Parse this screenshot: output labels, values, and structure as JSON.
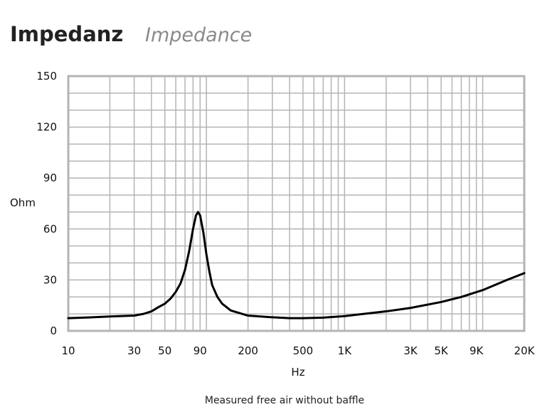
{
  "chart_data": {
    "type": "line",
    "title": "Impedanz",
    "subtitle": "Impedance",
    "xlabel": "Hz",
    "ylabel": "Ohm",
    "caption": "Measured free air without baffle",
    "x_scale": "log",
    "xlim": [
      10,
      20000
    ],
    "ylim": [
      0,
      150
    ],
    "grid": true,
    "x_ticks": [
      {
        "value": 10,
        "label": "10"
      },
      {
        "value": 30,
        "label": "30"
      },
      {
        "value": 50,
        "label": "50"
      },
      {
        "value": 90,
        "label": "90"
      },
      {
        "value": 200,
        "label": "200"
      },
      {
        "value": 500,
        "label": "500"
      },
      {
        "value": 1000,
        "label": "1K"
      },
      {
        "value": 3000,
        "label": "3K"
      },
      {
        "value": 5000,
        "label": "5K"
      },
      {
        "value": 9000,
        "label": "9K"
      },
      {
        "value": 20000,
        "label": "20K"
      }
    ],
    "y_ticks": [
      0,
      30,
      60,
      90,
      120,
      150
    ],
    "x_gridlines": [
      10,
      20,
      30,
      40,
      50,
      60,
      70,
      80,
      90,
      100,
      200,
      300,
      400,
      500,
      600,
      700,
      800,
      900,
      1000,
      2000,
      3000,
      4000,
      5000,
      6000,
      7000,
      8000,
      9000,
      10000,
      20000
    ],
    "y_gridlines": [
      0,
      10,
      20,
      30,
      40,
      50,
      60,
      70,
      80,
      90,
      100,
      110,
      120,
      130,
      140,
      150
    ],
    "series": [
      {
        "color": "#000000",
        "points": [
          [
            10,
            7.5
          ],
          [
            15,
            8
          ],
          [
            20,
            8.5
          ],
          [
            30,
            9
          ],
          [
            35,
            10
          ],
          [
            40,
            11.5
          ],
          [
            45,
            14
          ],
          [
            50,
            16
          ],
          [
            55,
            19
          ],
          [
            60,
            23
          ],
          [
            65,
            28
          ],
          [
            70,
            36
          ],
          [
            75,
            47
          ],
          [
            80,
            60
          ],
          [
            84,
            68
          ],
          [
            87,
            70
          ],
          [
            90,
            68
          ],
          [
            95,
            58
          ],
          [
            100,
            45
          ],
          [
            105,
            35
          ],
          [
            110,
            27
          ],
          [
            120,
            20
          ],
          [
            130,
            16
          ],
          [
            150,
            12
          ],
          [
            200,
            9
          ],
          [
            300,
            8
          ],
          [
            400,
            7.5
          ],
          [
            500,
            7.5
          ],
          [
            700,
            7.8
          ],
          [
            1000,
            8.7
          ],
          [
            2000,
            11.5
          ],
          [
            3000,
            13.5
          ],
          [
            5000,
            17
          ],
          [
            7000,
            20
          ],
          [
            10000,
            24
          ],
          [
            15000,
            30
          ],
          [
            20000,
            34
          ]
        ]
      }
    ]
  }
}
